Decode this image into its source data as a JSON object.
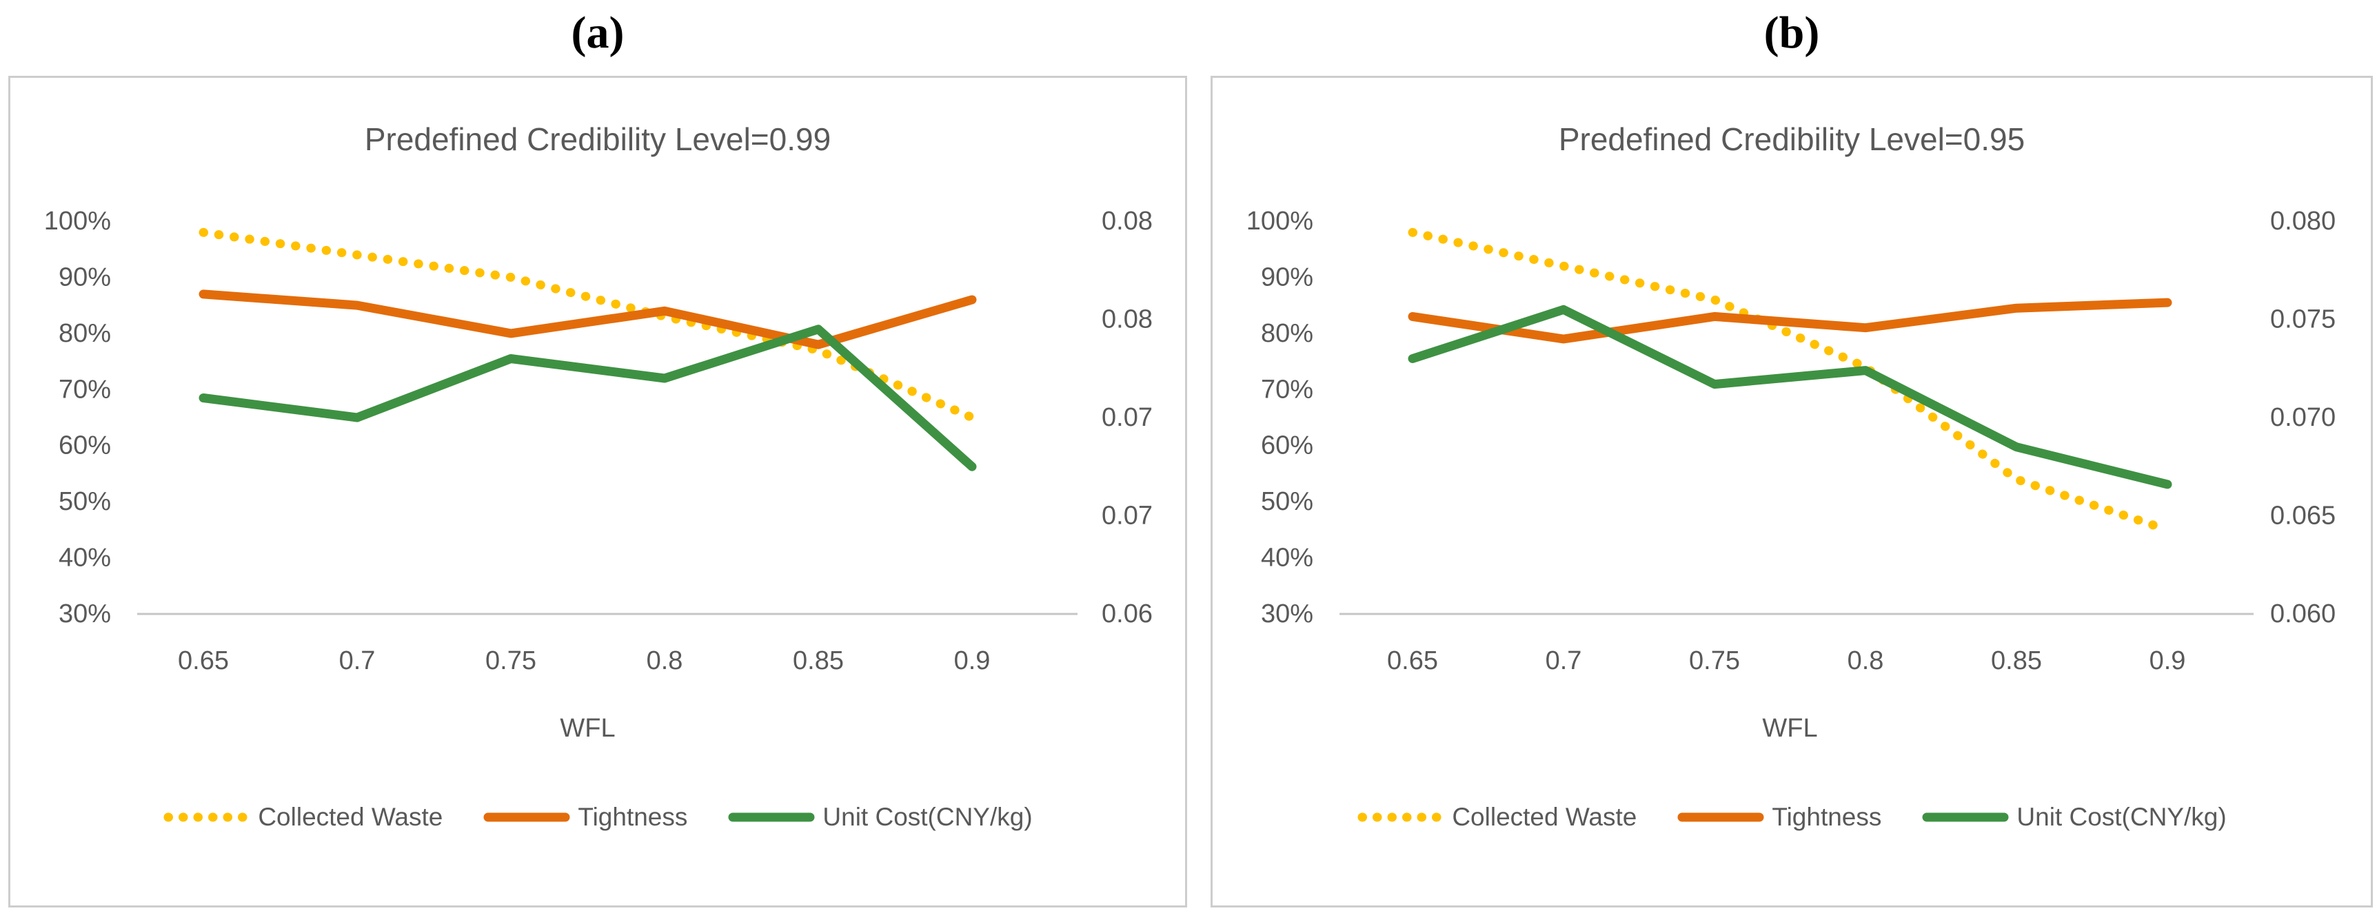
{
  "figure": {
    "panel_a_label": "(a)",
    "panel_b_label": "(b)"
  },
  "style": {
    "accent_yellow": "#FFC000",
    "accent_orange": "#E36C0A",
    "accent_green": "#3E9142",
    "text_gray": "#595959",
    "axis_line_gray": "#C6C6C6",
    "panel_border_gray": "#CDCDCD"
  },
  "legend": [
    {
      "label": "Collected Waste",
      "color": "#FFC000",
      "style": "dotted"
    },
    {
      "label": "Tightness",
      "color": "#E36C0A",
      "style": "solid"
    },
    {
      "label": "Unit Cost(CNY/kg)",
      "color": "#3E9142",
      "style": "solid"
    }
  ],
  "chart_data": [
    {
      "id": "a",
      "type": "line",
      "title": "Predefined Credibility Level=0.99",
      "xlabel": "WFL",
      "x": [
        0.65,
        0.7,
        0.75,
        0.8,
        0.85,
        0.9
      ],
      "x_tick_labels": [
        "0.65",
        "0.7",
        "0.75",
        "0.8",
        "0.85",
        "0.9"
      ],
      "left_axis": {
        "tick_labels": [
          "100%",
          "90%",
          "80%",
          "70%",
          "60%",
          "50%",
          "40%",
          "30%"
        ],
        "min": 30,
        "max": 100,
        "unit": "percent"
      },
      "right_axis": {
        "tick_labels": [
          "0.08",
          "0.08",
          "0.07",
          "0.07",
          "0.06"
        ],
        "min": 0.06,
        "max": 0.08
      },
      "grid": false,
      "legend_position": "bottom",
      "series": [
        {
          "name": "Collected Waste",
          "axis": "left",
          "style": "dotted",
          "color": "#FFC000",
          "values_pct": [
            98,
            94,
            90,
            83,
            77,
            65
          ]
        },
        {
          "name": "Tightness",
          "axis": "left",
          "style": "solid",
          "color": "#E36C0A",
          "values_pct": [
            87,
            85,
            80,
            84,
            78,
            86
          ]
        },
        {
          "name": "Unit Cost(CNY/kg)",
          "axis": "right",
          "style": "solid",
          "color": "#3E9142",
          "values": [
            0.071,
            0.07,
            0.073,
            0.072,
            0.0745,
            0.0675
          ]
        }
      ]
    },
    {
      "id": "b",
      "type": "line",
      "title": "Predefined Credibility Level=0.95",
      "xlabel": "WFL",
      "x": [
        0.65,
        0.7,
        0.75,
        0.8,
        0.85,
        0.9
      ],
      "x_tick_labels": [
        "0.65",
        "0.7",
        "0.75",
        "0.8",
        "0.85",
        "0.9"
      ],
      "left_axis": {
        "tick_labels": [
          "100%",
          "90%",
          "80%",
          "70%",
          "60%",
          "50%",
          "40%",
          "30%"
        ],
        "min": 30,
        "max": 100,
        "unit": "percent"
      },
      "right_axis": {
        "tick_labels": [
          "0.080",
          "0.075",
          "0.070",
          "0.065",
          "0.060"
        ],
        "min": 0.06,
        "max": 0.08
      },
      "grid": false,
      "legend_position": "bottom",
      "series": [
        {
          "name": "Collected Waste",
          "axis": "left",
          "style": "dotted",
          "color": "#FFC000",
          "values_pct": [
            98,
            92,
            86,
            74,
            54,
            45
          ]
        },
        {
          "name": "Tightness",
          "axis": "left",
          "style": "solid",
          "color": "#E36C0A",
          "values_pct": [
            83,
            79,
            83,
            81,
            84.5,
            85.5
          ]
        },
        {
          "name": "Unit Cost(CNY/kg)",
          "axis": "right",
          "style": "solid",
          "color": "#3E9142",
          "values": [
            0.073,
            0.0755,
            0.0717,
            0.0724,
            0.0685,
            0.0666
          ]
        }
      ]
    }
  ]
}
